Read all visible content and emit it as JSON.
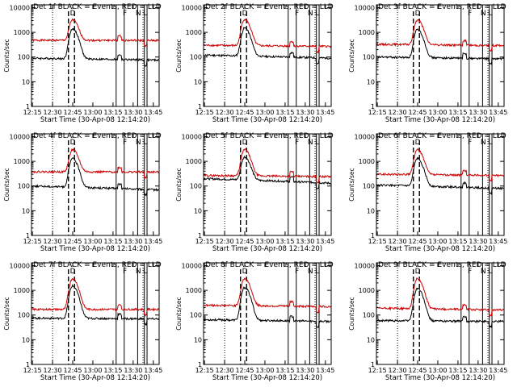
{
  "colors": {
    "events": "#000000",
    "lld": "#cc0000",
    "frame": "#000000",
    "background": "#ffffff"
  },
  "chart_data": [
    {
      "type": "line",
      "title": "Det 1f BLACK = Events, RED = LLD",
      "xlabel": "Start Time (30-Apr-08 12:14:20)",
      "ylabel": "Counts/sec",
      "x_ticks": [
        "12:15",
        "12:30",
        "12:45",
        "13:00",
        "13:15",
        "13:30",
        "13:45"
      ],
      "y_ticks": [
        "1",
        "10",
        "100",
        "1000",
        "10000"
      ],
      "yscale": "log",
      "ylim": [
        1,
        13000
      ],
      "xlim_minutes": [
        0,
        95
      ],
      "markers": [
        {
          "label": "D",
          "x_minutes": 30.7
        },
        {
          "label": "F",
          "x_minutes": 69.5
        },
        {
          "label": "N",
          "x_minutes": 79.5
        },
        {
          "label": "L",
          "x_minutes": 84.5
        }
      ],
      "dotted_x_minutes": [
        15.7,
        83.0
      ],
      "dashed_x_minutes": [
        27.5,
        32.0
      ],
      "solid_x_minutes": [
        63.0,
        69.0,
        79.0,
        84.0,
        86.0
      ],
      "series": [
        {
          "color": "#cc0000",
          "baseline": 480,
          "peak": 3200,
          "peak_x_minutes": 30.5,
          "end": 470
        },
        {
          "color": "#000000",
          "baseline": 90,
          "peak": 1400,
          "peak_x_minutes": 30.5,
          "end": 75
        }
      ]
    },
    {
      "type": "line",
      "title": "Det 2f BLACK = Events, RED = LLD",
      "xlabel": "Start Time (30-Apr-08 12:14:20)",
      "ylabel": "Counts/sec",
      "x_ticks": [
        "12:15",
        "12:30",
        "12:45",
        "13:00",
        "13:15",
        "13:30",
        "13:45"
      ],
      "y_ticks": [
        "1",
        "10",
        "100",
        "1000",
        "10000"
      ],
      "yscale": "log",
      "ylim": [
        1,
        13000
      ],
      "xlim_minutes": [
        0,
        95
      ],
      "markers": [
        {
          "label": "D",
          "x_minutes": 30.7
        },
        {
          "label": "F",
          "x_minutes": 69.5
        },
        {
          "label": "N",
          "x_minutes": 79.5
        },
        {
          "label": "L",
          "x_minutes": 84.5
        }
      ],
      "dotted_x_minutes": [
        15.7,
        83.0
      ],
      "dashed_x_minutes": [
        27.5,
        32.0
      ],
      "solid_x_minutes": [
        63.0,
        69.0,
        79.0,
        84.0,
        86.0
      ],
      "series": [
        {
          "color": "#cc0000",
          "baseline": 300,
          "peak": 3400,
          "peak_x_minutes": 30.5,
          "end": 270
        },
        {
          "color": "#000000",
          "baseline": 120,
          "peak": 1500,
          "peak_x_minutes": 30.5,
          "end": 90
        }
      ]
    },
    {
      "type": "line",
      "title": "Det 3f BLACK = Events, RED = LLD",
      "xlabel": "Start Time (30-Apr-08 12:14:20)",
      "ylabel": "Counts/sec",
      "x_ticks": [
        "12:15",
        "12:30",
        "12:45",
        "13:00",
        "13:15",
        "13:30",
        "13:45"
      ],
      "y_ticks": [
        "1",
        "10",
        "100",
        "1000",
        "10000"
      ],
      "yscale": "log",
      "ylim": [
        1,
        13000
      ],
      "xlim_minutes": [
        0,
        95
      ],
      "markers": [
        {
          "label": "D",
          "x_minutes": 30.7
        },
        {
          "label": "F",
          "x_minutes": 69.5
        },
        {
          "label": "N",
          "x_minutes": 79.5
        },
        {
          "label": "L",
          "x_minutes": 84.5
        }
      ],
      "dotted_x_minutes": [
        15.7,
        83.0
      ],
      "dashed_x_minutes": [
        27.5,
        32.0
      ],
      "solid_x_minutes": [
        63.0,
        69.0,
        79.0,
        84.0,
        86.0
      ],
      "series": [
        {
          "color": "#cc0000",
          "baseline": 330,
          "peak": 3200,
          "peak_x_minutes": 30.5,
          "end": 290
        },
        {
          "color": "#000000",
          "baseline": 100,
          "peak": 1300,
          "peak_x_minutes": 30.5,
          "end": 85
        }
      ]
    },
    {
      "type": "line",
      "title": "Det 4f BLACK = Events, RED = LLD",
      "xlabel": "Start Time (30-Apr-08 12:14:20)",
      "ylabel": "Counts/sec",
      "x_ticks": [
        "12:15",
        "12:30",
        "12:45",
        "13:00",
        "13:15",
        "13:30",
        "13:45"
      ],
      "y_ticks": [
        "1",
        "10",
        "100",
        "1000",
        "10000"
      ],
      "yscale": "log",
      "ylim": [
        1,
        13000
      ],
      "xlim_minutes": [
        0,
        95
      ],
      "markers": [
        {
          "label": "D",
          "x_minutes": 30.7
        },
        {
          "label": "F",
          "x_minutes": 69.5
        },
        {
          "label": "N",
          "x_minutes": 79.5
        },
        {
          "label": "L",
          "x_minutes": 84.5
        }
      ],
      "dotted_x_minutes": [
        15.7,
        83.0
      ],
      "dashed_x_minutes": [
        27.5,
        32.0
      ],
      "solid_x_minutes": [
        63.0,
        69.0,
        79.0,
        84.0,
        86.0
      ],
      "series": [
        {
          "color": "#cc0000",
          "baseline": 380,
          "peak": 3000,
          "peak_x_minutes": 30.5,
          "end": 370
        },
        {
          "color": "#000000",
          "baseline": 100,
          "peak": 1300,
          "peak_x_minutes": 30.5,
          "end": 70
        }
      ]
    },
    {
      "type": "line",
      "title": "Det 5f BLACK = Events, RED = LLD",
      "xlabel": "Start Time (30-Apr-08 12:14:20)",
      "ylabel": "Counts/sec",
      "x_ticks": [
        "12:15",
        "12:30",
        "12:45",
        "13:00",
        "13:15",
        "13:30",
        "13:45"
      ],
      "y_ticks": [
        "1",
        "10",
        "100",
        "1000",
        "10000"
      ],
      "yscale": "log",
      "ylim": [
        1,
        13000
      ],
      "xlim_minutes": [
        0,
        95
      ],
      "markers": [
        {
          "label": "D",
          "x_minutes": 30.7
        },
        {
          "label": "F",
          "x_minutes": 69.5
        },
        {
          "label": "N",
          "x_minutes": 79.5
        },
        {
          "label": "L",
          "x_minutes": 84.5
        }
      ],
      "dotted_x_minutes": [
        15.7,
        83.0
      ],
      "dashed_x_minutes": [
        27.5,
        32.0
      ],
      "solid_x_minutes": [
        63.0,
        69.0,
        79.0,
        84.0,
        86.0
      ],
      "series": [
        {
          "color": "#cc0000",
          "baseline": 270,
          "peak": 3000,
          "peak_x_minutes": 30.5,
          "end": 240
        },
        {
          "color": "#000000",
          "baseline": 200,
          "peak": 1500,
          "peak_x_minutes": 30.5,
          "end": 130
        }
      ]
    },
    {
      "type": "line",
      "title": "Det 6f BLACK = Events, RED = LLD",
      "xlabel": "Start Time (30-Apr-08 12:14:20)",
      "ylabel": "Counts/sec",
      "x_ticks": [
        "12:15",
        "12:30",
        "12:45",
        "13:00",
        "13:15",
        "13:30",
        "13:45"
      ],
      "y_ticks": [
        "1",
        "10",
        "100",
        "1000",
        "10000"
      ],
      "yscale": "log",
      "ylim": [
        1,
        13000
      ],
      "xlim_minutes": [
        0,
        95
      ],
      "markers": [
        {
          "label": "D",
          "x_minutes": 30.7
        },
        {
          "label": "F",
          "x_minutes": 69.5
        },
        {
          "label": "N",
          "x_minutes": 79.5
        },
        {
          "label": "L",
          "x_minutes": 84.5
        }
      ],
      "dotted_x_minutes": [
        15.7,
        83.0
      ],
      "dashed_x_minutes": [
        27.5,
        32.0
      ],
      "solid_x_minutes": [
        63.0,
        69.0,
        79.0,
        84.0,
        86.0
      ],
      "series": [
        {
          "color": "#cc0000",
          "baseline": 300,
          "peak": 3000,
          "peak_x_minutes": 30.5,
          "end": 270
        },
        {
          "color": "#000000",
          "baseline": 110,
          "peak": 1300,
          "peak_x_minutes": 30.5,
          "end": 80
        }
      ]
    },
    {
      "type": "line",
      "title": "Det 7f BLACK = Events, RED = LLD",
      "xlabel": "Start Time (30-Apr-08 12:14:20)",
      "ylabel": "Counts/sec",
      "x_ticks": [
        "12:15",
        "12:30",
        "12:45",
        "13:00",
        "13:15",
        "13:30",
        "13:45"
      ],
      "y_ticks": [
        "1",
        "10",
        "100",
        "1000",
        "10000"
      ],
      "yscale": "log",
      "ylim": [
        1,
        13000
      ],
      "xlim_minutes": [
        0,
        95
      ],
      "markers": [
        {
          "label": "D",
          "x_minutes": 30.7
        },
        {
          "label": "F",
          "x_minutes": 69.5
        },
        {
          "label": "N",
          "x_minutes": 79.5
        },
        {
          "label": "L",
          "x_minutes": 84.5
        }
      ],
      "dotted_x_minutes": [
        15.7,
        83.0
      ],
      "dashed_x_minutes": [
        27.5,
        32.0
      ],
      "solid_x_minutes": [
        63.0,
        69.0,
        79.0,
        84.0,
        86.0
      ],
      "series": [
        {
          "color": "#cc0000",
          "baseline": 170,
          "peak": 3000,
          "peak_x_minutes": 30.5,
          "end": 170
        },
        {
          "color": "#000000",
          "baseline": 75,
          "peak": 1500,
          "peak_x_minutes": 30.5,
          "end": 70
        }
      ]
    },
    {
      "type": "line",
      "title": "Det 8f BLACK = Events, RED = LLD",
      "xlabel": "Start Time (30-Apr-08 12:14:20)",
      "ylabel": "Counts/sec",
      "x_ticks": [
        "12:15",
        "12:30",
        "12:45",
        "13:00",
        "13:15",
        "13:30",
        "13:45"
      ],
      "y_ticks": [
        "1",
        "10",
        "100",
        "1000",
        "10000"
      ],
      "yscale": "log",
      "ylim": [
        1,
        13000
      ],
      "xlim_minutes": [
        0,
        95
      ],
      "markers": [
        {
          "label": "D",
          "x_minutes": 30.7
        },
        {
          "label": "F",
          "x_minutes": 69.5
        },
        {
          "label": "N",
          "x_minutes": 79.5
        },
        {
          "label": "L",
          "x_minutes": 84.5
        }
      ],
      "dotted_x_minutes": [
        15.7,
        83.0
      ],
      "dashed_x_minutes": [
        27.5,
        32.0
      ],
      "solid_x_minutes": [
        63.0,
        69.0,
        79.0,
        84.0,
        86.0
      ],
      "series": [
        {
          "color": "#cc0000",
          "baseline": 250,
          "peak": 3000,
          "peak_x_minutes": 30.5,
          "end": 220
        },
        {
          "color": "#000000",
          "baseline": 65,
          "peak": 1300,
          "peak_x_minutes": 30.5,
          "end": 55
        }
      ]
    },
    {
      "type": "line",
      "title": "Det 9f BLACK = Events, RED = LLD",
      "xlabel": "Start Time (30-Apr-08 12:14:20)",
      "ylabel": "Counts/sec",
      "x_ticks": [
        "12:15",
        "12:30",
        "12:45",
        "13:00",
        "13:15",
        "13:30",
        "13:45"
      ],
      "y_ticks": [
        "1",
        "10",
        "100",
        "1000",
        "10000"
      ],
      "yscale": "log",
      "ylim": [
        1,
        13000
      ],
      "xlim_minutes": [
        0,
        95
      ],
      "markers": [
        {
          "label": "D",
          "x_minutes": 30.7
        },
        {
          "label": "F",
          "x_minutes": 69.5
        },
        {
          "label": "N",
          "x_minutes": 79.5
        },
        {
          "label": "L",
          "x_minutes": 84.5
        }
      ],
      "dotted_x_minutes": [
        15.7,
        83.0
      ],
      "dashed_x_minutes": [
        27.5,
        32.0
      ],
      "solid_x_minutes": [
        63.0,
        69.0,
        79.0,
        84.0,
        86.0
      ],
      "series": [
        {
          "color": "#cc0000",
          "baseline": 190,
          "peak": 3000,
          "peak_x_minutes": 30.5,
          "end": 160
        },
        {
          "color": "#000000",
          "baseline": 60,
          "peak": 1200,
          "peak_x_minutes": 30.5,
          "end": 55
        }
      ]
    }
  ]
}
